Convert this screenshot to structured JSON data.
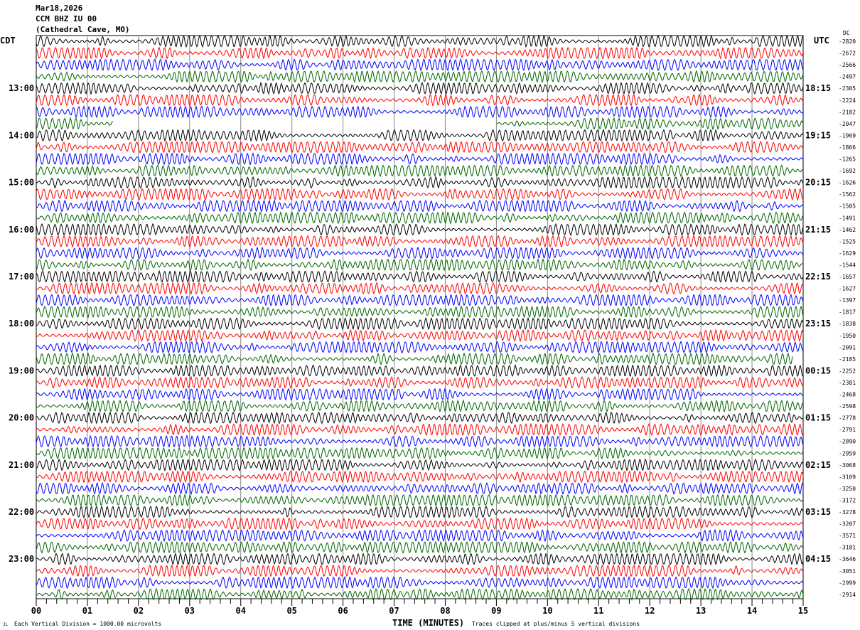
{
  "header": {
    "date": "Mar18,2026",
    "station": "CCM BHZ IU 00",
    "location": "(Cathedral Cave, MO)"
  },
  "left_zone": "CDT",
  "right_zone": "UTC",
  "dc_label": "DC",
  "footer": {
    "scale": "Each Vertical Division = 1000.00 microvolts",
    "xlabel": "TIME (MINUTES)",
    "clip": "Traces clipped at plus/minus 5 vertical divisions",
    "logo": "JL"
  },
  "chart_data": {
    "type": "line",
    "title": "CCM BHZ IU 00 helicorder",
    "xlabel": "TIME (MINUTES)",
    "xlim": [
      0,
      15
    ],
    "x_ticks": [
      "00",
      "01",
      "02",
      "03",
      "04",
      "05",
      "06",
      "07",
      "08",
      "09",
      "10",
      "11",
      "12",
      "13",
      "14",
      "15"
    ],
    "trace_colors": [
      "#000000",
      "#ff0000",
      "#0000ff",
      "#006400"
    ],
    "left_labels": [
      "13:00",
      "14:00",
      "15:00",
      "16:00",
      "17:00",
      "18:00",
      "19:00",
      "20:00",
      "21:00",
      "22:00",
      "23:00"
    ],
    "right_labels": [
      "18:15",
      "19:15",
      "20:15",
      "21:15",
      "22:15",
      "23:15",
      "00:15",
      "01:15",
      "02:15",
      "03:15",
      "04:15"
    ],
    "dc_offsets": [
      "-2820",
      "-2672",
      "-2566",
      "-2497",
      "-2305",
      "-2224",
      "-2182",
      "-2047",
      "-1969",
      "-1866",
      "-1265",
      "-1692",
      "-1626",
      "-1562",
      "-1505",
      "-1491",
      "-1462",
      "-1525",
      "-1629",
      "-1544",
      "-1657",
      "-1627",
      "-1397",
      "-1817",
      "-1838",
      "-1950",
      "-2091",
      "-2185",
      "-2252",
      "-2381",
      "-2468",
      "-2598",
      "-2778",
      "-2791",
      "-2890",
      "-2959",
      "-3068",
      "-3109",
      "-3250",
      "-3172",
      "-3278",
      "-3207",
      "-3571",
      "-3181",
      "-3646",
      "-3051",
      "-2999",
      "-2914"
    ],
    "trace_count": 48,
    "gaps": [
      {
        "trace": 7,
        "from_min": 1.5,
        "to_min": 9.0
      }
    ],
    "trace_end_min": [
      {
        "trace": 27,
        "end_min": 14.8
      }
    ]
  }
}
